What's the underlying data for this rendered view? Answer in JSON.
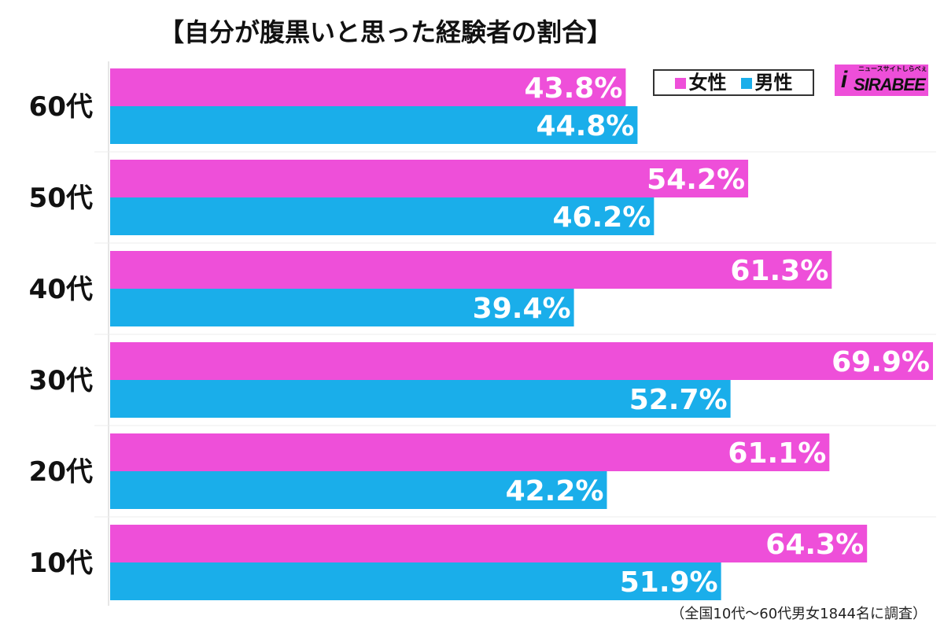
{
  "chart_data": {
    "type": "bar",
    "orientation": "horizontal",
    "title": "【自分が腹黒いと思った経験者の割合】",
    "categories": [
      "60代",
      "50代",
      "40代",
      "30代",
      "20代",
      "10代"
    ],
    "series": [
      {
        "name": "女性",
        "color": "#ee4fd9",
        "values": [
          43.8,
          54.2,
          61.3,
          69.9,
          61.1,
          64.3
        ]
      },
      {
        "name": "男性",
        "color": "#1aaeea",
        "values": [
          44.8,
          46.2,
          39.4,
          52.7,
          42.2,
          51.9
        ]
      }
    ],
    "value_suffix": "%",
    "xlim": [
      0,
      70
    ],
    "grid": false,
    "legend": "top-right",
    "note": "（全国10代～60代男女1844名に調査）"
  },
  "logo": {
    "text": "SIRABEE",
    "tagline": "ニュースサイトしらべぇ"
  }
}
